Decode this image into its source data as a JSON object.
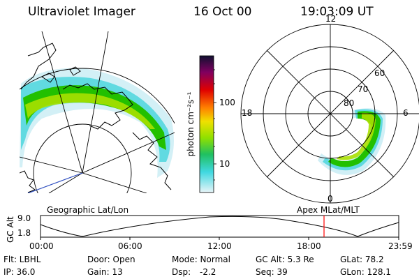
{
  "header": {
    "title": "Ultraviolet Imager",
    "date": "16 Oct 00",
    "time": "19:03:09 UT"
  },
  "colors": {
    "aurora_strong": "#22c000",
    "aurora_mid": "#a8e000",
    "aurora_weak": "#30d0d8",
    "aurora_faint": "#c8ecf4",
    "coast": "#000000",
    "track_marker": "#ff0000",
    "projection_line": "#3050c0"
  },
  "geo_map": {
    "label": "Geographic Lat/Lon",
    "icons": [
      "coastline-map",
      "lat-lon-grid"
    ]
  },
  "colorbar": {
    "unit_label": "photon cm⁻²s⁻¹",
    "ticks": [
      "100",
      "10"
    ],
    "stops": [
      "#e8f4f8",
      "#40d8e0",
      "#20c060",
      "#90e000",
      "#f0e000",
      "#ff8000",
      "#e00000",
      "#800060",
      "#101030"
    ]
  },
  "polar_plot": {
    "label": "Apex MLat/MLT",
    "mlt_labels": {
      "top": "12",
      "left": "18",
      "right": "6",
      "bottom": "0"
    },
    "mlat_labels": [
      "60",
      "70",
      "80"
    ]
  },
  "altitude_panel": {
    "axis_label": "GC Alt",
    "y_ticks": [
      "9.0",
      "1.8"
    ],
    "time_ticks": [
      "00:00",
      "06:00",
      "12:00",
      "18:00",
      "23:59"
    ],
    "marker_time": "19:03"
  },
  "info": {
    "row1": {
      "flt": "Flt: LBHL",
      "door": "Door: Open",
      "mode": "Mode: Normal",
      "gcalt": "GC Alt: 5.3 Re",
      "glat": "GLat: 78.2"
    },
    "row2": {
      "ip": "IP: 36.0",
      "gain": "Gain: 13",
      "dsp_label": "Dsp:",
      "dsp_value": "-2.2",
      "seq": "Seq: 39",
      "glon": "GLon: 128.1"
    }
  }
}
